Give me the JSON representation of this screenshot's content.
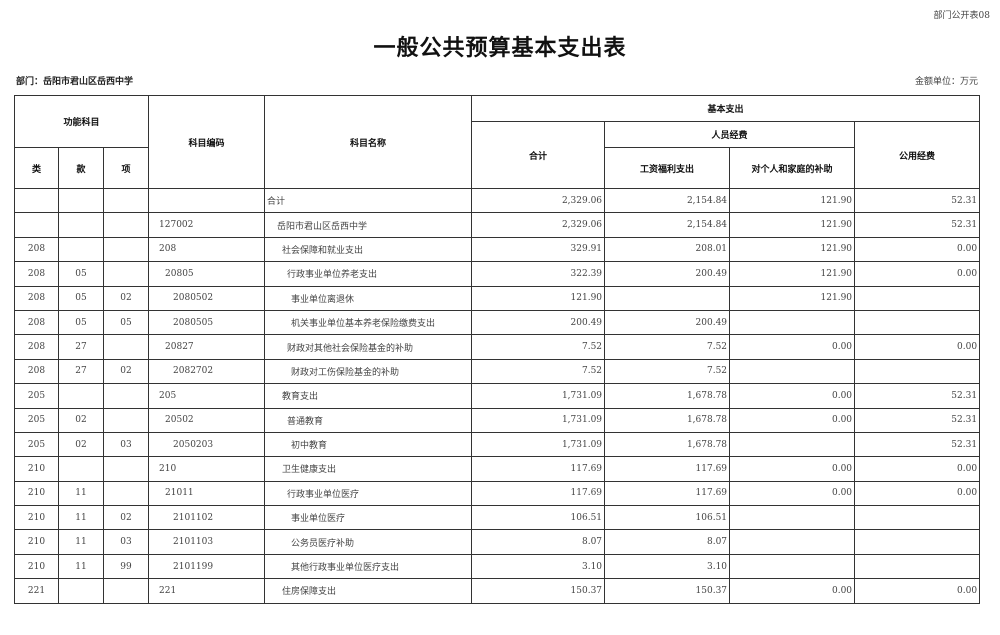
{
  "form_number": "部门公开表08",
  "title": "一般公共预算基本支出表",
  "department": "部门：岳阳市君山区岳西中学",
  "unit": "金额单位：万元",
  "headers": {
    "function_subject": "功能科目",
    "lei": "类",
    "kuan": "款",
    "xiang": "项",
    "subject_code": "科目编码",
    "subject_name": "科目名称",
    "basic_expenditure": "基本支出",
    "total": "合计",
    "personnel": "人员经费",
    "wages": "工资福利支出",
    "subsidy": "对个人和家庭的补助",
    "public": "公用经费"
  },
  "rows": [
    {
      "lei": "",
      "kuan": "",
      "xiang": "",
      "code": "",
      "name": "合计",
      "total": "2,329.06",
      "wages": "2,154.84",
      "subsidy": "121.90",
      "public": "52.31",
      "level": 0
    },
    {
      "lei": "",
      "kuan": "",
      "xiang": "",
      "code": "127002",
      "name": "岳阳市君山区岳西中学",
      "total": "2,329.06",
      "wages": "2,154.84",
      "subsidy": "121.90",
      "public": "52.31",
      "level": 1
    },
    {
      "lei": "208",
      "kuan": "",
      "xiang": "",
      "code": "208",
      "name": "社会保障和就业支出",
      "total": "329.91",
      "wages": "208.01",
      "subsidy": "121.90",
      "public": "0.00",
      "level": 2
    },
    {
      "lei": "208",
      "kuan": "05",
      "xiang": "",
      "code": "20805",
      "name": "行政事业单位养老支出",
      "total": "322.39",
      "wages": "200.49",
      "subsidy": "121.90",
      "public": "0.00",
      "level": 3
    },
    {
      "lei": "208",
      "kuan": "05",
      "xiang": "02",
      "code": "2080502",
      "name": "事业单位离退休",
      "total": "121.90",
      "wages": "",
      "subsidy": "121.90",
      "public": "",
      "level": 4
    },
    {
      "lei": "208",
      "kuan": "05",
      "xiang": "05",
      "code": "2080505",
      "name": "机关事业单位基本养老保险缴费支出",
      "total": "200.49",
      "wages": "200.49",
      "subsidy": "",
      "public": "",
      "level": 4
    },
    {
      "lei": "208",
      "kuan": "27",
      "xiang": "",
      "code": "20827",
      "name": "财政对其他社会保险基金的补助",
      "total": "7.52",
      "wages": "7.52",
      "subsidy": "0.00",
      "public": "0.00",
      "level": 3
    },
    {
      "lei": "208",
      "kuan": "27",
      "xiang": "02",
      "code": "2082702",
      "name": "财政对工伤保险基金的补助",
      "total": "7.52",
      "wages": "7.52",
      "subsidy": "",
      "public": "",
      "level": 4
    },
    {
      "lei": "205",
      "kuan": "",
      "xiang": "",
      "code": "205",
      "name": "教育支出",
      "total": "1,731.09",
      "wages": "1,678.78",
      "subsidy": "0.00",
      "public": "52.31",
      "level": 2
    },
    {
      "lei": "205",
      "kuan": "02",
      "xiang": "",
      "code": "20502",
      "name": "普通教育",
      "total": "1,731.09",
      "wages": "1,678.78",
      "subsidy": "0.00",
      "public": "52.31",
      "level": 3
    },
    {
      "lei": "205",
      "kuan": "02",
      "xiang": "03",
      "code": "2050203",
      "name": "初中教育",
      "total": "1,731.09",
      "wages": "1,678.78",
      "subsidy": "",
      "public": "52.31",
      "level": 4
    },
    {
      "lei": "210",
      "kuan": "",
      "xiang": "",
      "code": "210",
      "name": "卫生健康支出",
      "total": "117.69",
      "wages": "117.69",
      "subsidy": "0.00",
      "public": "0.00",
      "level": 2
    },
    {
      "lei": "210",
      "kuan": "11",
      "xiang": "",
      "code": "21011",
      "name": "行政事业单位医疗",
      "total": "117.69",
      "wages": "117.69",
      "subsidy": "0.00",
      "public": "0.00",
      "level": 3
    },
    {
      "lei": "210",
      "kuan": "11",
      "xiang": "02",
      "code": "2101102",
      "name": "事业单位医疗",
      "total": "106.51",
      "wages": "106.51",
      "subsidy": "",
      "public": "",
      "level": 4
    },
    {
      "lei": "210",
      "kuan": "11",
      "xiang": "03",
      "code": "2101103",
      "name": "公务员医疗补助",
      "total": "8.07",
      "wages": "8.07",
      "subsidy": "",
      "public": "",
      "level": 4
    },
    {
      "lei": "210",
      "kuan": "11",
      "xiang": "99",
      "code": "2101199",
      "name": "其他行政事业单位医疗支出",
      "total": "3.10",
      "wages": "3.10",
      "subsidy": "",
      "public": "",
      "level": 4
    },
    {
      "lei": "221",
      "kuan": "",
      "xiang": "",
      "code": "221",
      "name": "住房保障支出",
      "total": "150.37",
      "wages": "150.37",
      "subsidy": "0.00",
      "public": "0.00",
      "level": 2
    }
  ]
}
